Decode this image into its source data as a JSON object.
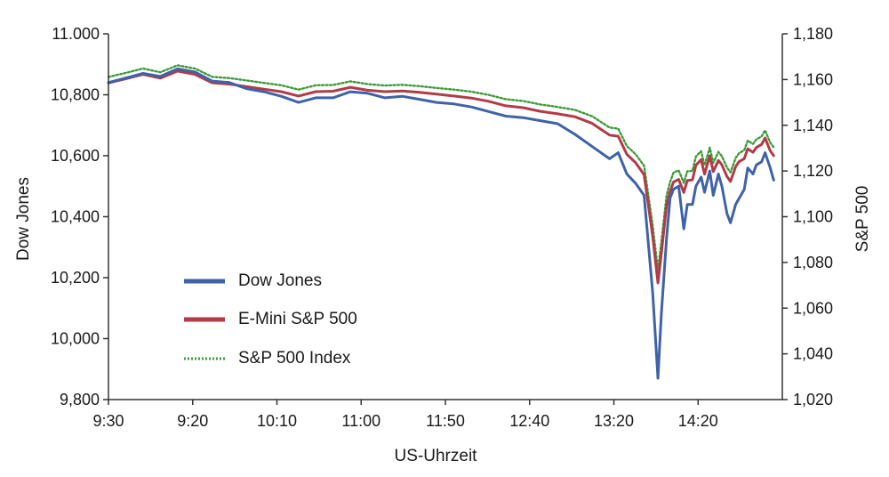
{
  "chart_data": {
    "type": "line",
    "xlabel": "US-Uhrzeit",
    "ylabel_left": "Dow Jones",
    "ylabel_right": "S&P 500",
    "x_ticks": [
      "9:30",
      "9:20",
      "10:10",
      "11:00",
      "11:50",
      "12:40",
      "13:20",
      "14:20"
    ],
    "x_range_minutes": [
      570,
      960
    ],
    "y_left": {
      "range": [
        9800,
        11000
      ],
      "tick_values": [
        9800,
        10000,
        10200,
        10400,
        10600,
        10800,
        11000
      ],
      "tick_labels": [
        "9,800",
        "10,000",
        "10,200",
        "10,400",
        "10,600",
        "10,800",
        "11.000"
      ]
    },
    "y_right": {
      "range": [
        1020,
        1180
      ],
      "tick_values": [
        1020,
        1040,
        1060,
        1080,
        1100,
        1120,
        1140,
        1160,
        1180
      ],
      "tick_labels": [
        "1,020",
        "1,040",
        "1,060",
        "1,080",
        "1,100",
        "1,120",
        "1,140",
        "1,160",
        "1,180"
      ]
    },
    "legend_position": "lower-left",
    "grid": false,
    "x_minutes": [
      570,
      580,
      590,
      600,
      610,
      620,
      630,
      640,
      650,
      660,
      670,
      680,
      690,
      700,
      710,
      720,
      730,
      740,
      750,
      760,
      770,
      780,
      790,
      800,
      810,
      820,
      830,
      840,
      850,
      860,
      865,
      870,
      875,
      880,
      885,
      888,
      890,
      893,
      895,
      897,
      900,
      903,
      905,
      908,
      910,
      913,
      915,
      918,
      920,
      923,
      925,
      928,
      930,
      933,
      935,
      938,
      940,
      943,
      945,
      948,
      950,
      953,
      955
    ],
    "series": [
      {
        "name": "Dow Jones",
        "axis": "left",
        "color": "#3f63a8",
        "style": "solid",
        "values": [
          10840,
          10855,
          10870,
          10860,
          10885,
          10875,
          10845,
          10840,
          10820,
          10810,
          10795,
          10775,
          10790,
          10790,
          10810,
          10805,
          10790,
          10795,
          10785,
          10775,
          10770,
          10760,
          10745,
          10730,
          10725,
          10715,
          10705,
          10670,
          10630,
          10590,
          10610,
          10540,
          10510,
          10470,
          10150,
          9870,
          10080,
          10330,
          10460,
          10490,
          10500,
          10360,
          10440,
          10440,
          10500,
          10530,
          10480,
          10550,
          10470,
          10540,
          10500,
          10410,
          10380,
          10440,
          10460,
          10490,
          10560,
          10540,
          10570,
          10580,
          10610,
          10560,
          10520
        ]
      },
      {
        "name": "E-Mini S&P 500",
        "axis": "right",
        "color": "#b23b48",
        "style": "solid",
        "values": [
          1158.5,
          1160.3,
          1162.3,
          1160.6,
          1163.7,
          1162.3,
          1158.6,
          1158.0,
          1156.9,
          1155.8,
          1154.7,
          1152.8,
          1154.7,
          1154.9,
          1156.6,
          1155.3,
          1154.7,
          1155.0,
          1154.4,
          1153.6,
          1152.8,
          1151.9,
          1150.5,
          1148.5,
          1147.7,
          1146.1,
          1145.0,
          1143.7,
          1140.8,
          1135.7,
          1135.2,
          1127.3,
          1123.7,
          1118.4,
          1091.4,
          1071.0,
          1083.8,
          1104.9,
          1110.9,
          1115.2,
          1116.3,
          1110.6,
          1115.8,
          1116.1,
          1122.5,
          1125.0,
          1118.6,
          1126.6,
          1119.7,
          1124.6,
          1122.7,
          1117.5,
          1115.4,
          1121.9,
          1124.1,
          1125.4,
          1129.7,
          1128.2,
          1130.3,
          1131.6,
          1134.4,
          1128.8,
          1126.7
        ]
      },
      {
        "name": "S&P 500 Index",
        "axis": "right",
        "color": "#3c9b38",
        "style": "dotted",
        "values": [
          1161.1,
          1162.9,
          1164.8,
          1163.2,
          1166.2,
          1164.8,
          1161.2,
          1160.6,
          1159.6,
          1158.5,
          1157.5,
          1155.6,
          1157.5,
          1157.6,
          1159.2,
          1158.0,
          1157.4,
          1157.7,
          1157.1,
          1156.3,
          1155.6,
          1154.7,
          1153.3,
          1151.4,
          1150.6,
          1149.1,
          1148.0,
          1146.7,
          1143.9,
          1139.0,
          1138.5,
          1130.9,
          1127.4,
          1122.3,
          1096.2,
          1076.5,
          1088.9,
          1109.3,
          1115.1,
          1119.3,
          1120.3,
          1114.8,
          1119.8,
          1120.1,
          1126.3,
          1128.7,
          1122.5,
          1130.2,
          1123.6,
          1128.3,
          1126.5,
          1121.5,
          1119.4,
          1125.7,
          1127.8,
          1129.1,
          1133.3,
          1131.8,
          1133.8,
          1135.1,
          1137.8,
          1132.4,
          1130.4
        ]
      }
    ]
  }
}
